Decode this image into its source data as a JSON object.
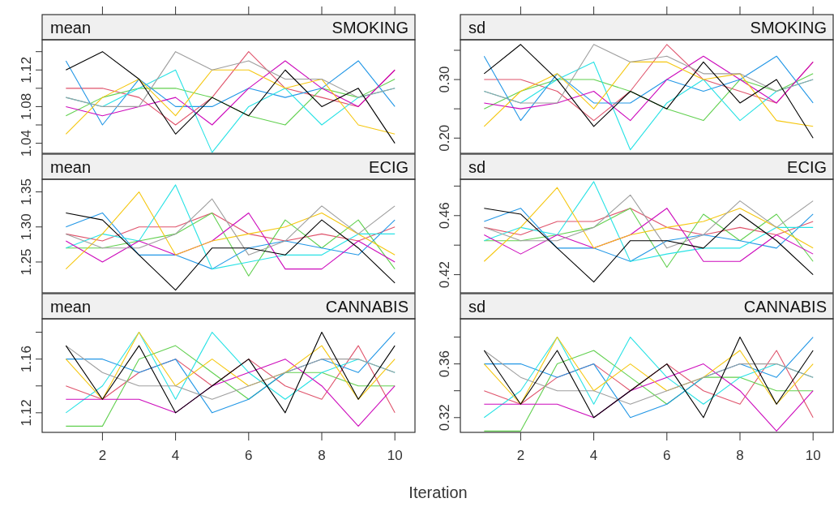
{
  "chart_data": [
    {
      "type": "line",
      "ylabel": "mean",
      "title": "SMOKING",
      "x": [
        1,
        2,
        3,
        4,
        5,
        6,
        7,
        8,
        9,
        10
      ],
      "xlim": [
        0.35,
        10.55
      ],
      "xticks": [
        2,
        4,
        6,
        8,
        10
      ],
      "ylim": [
        1.029,
        1.153
      ],
      "yticks": [
        1.04,
        {
          "value": 1.06,
          "label": null
        },
        1.08,
        {
          "value": 1.1,
          "label": null
        },
        1.12,
        {
          "value": 1.14,
          "label": null
        }
      ],
      "tick_labels": "y",
      "grid": false,
      "series": [
        {
          "color": "#df536b",
          "values": [
            1.1,
            1.1,
            1.09,
            1.06,
            1.09,
            1.14,
            1.1,
            1.09,
            1.08,
            1.12
          ]
        },
        {
          "color": "#61d04f",
          "values": [
            1.07,
            1.09,
            1.1,
            1.1,
            1.09,
            1.07,
            1.06,
            1.1,
            1.09,
            1.11
          ]
        },
        {
          "color": "#2297e6",
          "values": [
            1.13,
            1.06,
            1.11,
            1.08,
            1.08,
            1.1,
            1.09,
            1.1,
            1.13,
            1.08
          ]
        },
        {
          "color": "#28e2e5",
          "values": [
            1.09,
            1.08,
            1.1,
            1.12,
            1.03,
            1.08,
            1.1,
            1.06,
            1.09,
            1.1
          ]
        },
        {
          "color": "#cd0bbc",
          "values": [
            1.08,
            1.07,
            1.08,
            1.09,
            1.06,
            1.1,
            1.13,
            1.1,
            1.08,
            1.12
          ]
        },
        {
          "color": "#f5c710",
          "values": [
            1.05,
            1.09,
            1.11,
            1.07,
            1.12,
            1.12,
            1.1,
            1.11,
            1.06,
            1.05
          ]
        },
        {
          "color": "#9e9e9e",
          "values": [
            1.09,
            1.08,
            1.08,
            1.14,
            1.12,
            1.13,
            1.11,
            1.11,
            1.09,
            1.1
          ]
        },
        {
          "color": "#000000",
          "values": [
            1.12,
            1.14,
            1.11,
            1.05,
            1.09,
            1.07,
            1.12,
            1.08,
            1.1,
            1.04
          ]
        }
      ]
    },
    {
      "type": "line",
      "ylabel": "sd",
      "title": "SMOKING",
      "x": [
        1,
        2,
        3,
        4,
        5,
        6,
        7,
        8,
        9,
        10
      ],
      "xlim": [
        0.35,
        10.55
      ],
      "xticks": [
        2,
        4,
        6,
        8,
        10
      ],
      "ylim": [
        0.174,
        0.368
      ],
      "yticks": [
        {
          "value": 0.2,
          "label": "0.20"
        },
        {
          "value": 0.25,
          "label": null
        },
        {
          "value": 0.3,
          "label": "0.30"
        },
        {
          "value": 0.35,
          "label": null
        }
      ],
      "tick_labels": "y",
      "grid": false,
      "series": [
        {
          "color": "#df536b",
          "values": [
            0.3,
            0.3,
            0.28,
            0.23,
            0.28,
            0.36,
            0.3,
            0.28,
            0.26,
            0.33
          ]
        },
        {
          "color": "#61d04f",
          "values": [
            0.25,
            0.28,
            0.3,
            0.3,
            0.28,
            0.25,
            0.23,
            0.3,
            0.28,
            0.31
          ]
        },
        {
          "color": "#2297e6",
          "values": [
            0.34,
            0.23,
            0.31,
            0.26,
            0.26,
            0.3,
            0.28,
            0.3,
            0.34,
            0.26
          ]
        },
        {
          "color": "#28e2e5",
          "values": [
            0.28,
            0.26,
            0.3,
            0.33,
            0.18,
            0.26,
            0.3,
            0.23,
            0.28,
            0.3
          ]
        },
        {
          "color": "#cd0bbc",
          "values": [
            0.26,
            0.25,
            0.26,
            0.28,
            0.23,
            0.3,
            0.34,
            0.3,
            0.26,
            0.33
          ]
        },
        {
          "color": "#f5c710",
          "values": [
            0.22,
            0.28,
            0.31,
            0.25,
            0.33,
            0.33,
            0.3,
            0.31,
            0.23,
            0.22
          ]
        },
        {
          "color": "#9e9e9e",
          "values": [
            0.28,
            0.26,
            0.26,
            0.36,
            0.33,
            0.34,
            0.31,
            0.31,
            0.28,
            0.3
          ]
        },
        {
          "color": "#000000",
          "values": [
            0.31,
            0.36,
            0.3,
            0.22,
            0.28,
            0.25,
            0.33,
            0.26,
            0.3,
            0.2
          ]
        }
      ]
    },
    {
      "type": "line",
      "ylabel": "mean",
      "title": "ECIG",
      "x": [
        1,
        2,
        3,
        4,
        5,
        6,
        7,
        8,
        9,
        10
      ],
      "xlim": [
        0.35,
        10.55
      ],
      "xticks": [
        2,
        4,
        6,
        8,
        10
      ],
      "ylim": [
        1.206,
        1.368
      ],
      "yticks": [
        1.25,
        {
          "value": 1.3,
          "label": "1.30"
        },
        1.35
      ],
      "tick_labels": "y",
      "grid": false,
      "series": [
        {
          "color": "#df536b",
          "values": [
            1.29,
            1.28,
            1.3,
            1.3,
            1.32,
            1.29,
            1.28,
            1.29,
            1.28,
            1.3
          ]
        },
        {
          "color": "#61d04f",
          "values": [
            1.27,
            1.27,
            1.28,
            1.29,
            1.32,
            1.23,
            1.31,
            1.27,
            1.31,
            1.24
          ]
        },
        {
          "color": "#2297e6",
          "values": [
            1.3,
            1.32,
            1.26,
            1.26,
            1.24,
            1.27,
            1.28,
            1.27,
            1.26,
            1.31
          ]
        },
        {
          "color": "#28e2e5",
          "values": [
            1.27,
            1.29,
            1.28,
            1.36,
            1.24,
            1.25,
            1.26,
            1.26,
            1.29,
            1.29
          ]
        },
        {
          "color": "#cd0bbc",
          "values": [
            1.28,
            1.25,
            1.28,
            1.26,
            1.28,
            1.32,
            1.24,
            1.24,
            1.28,
            1.25
          ]
        },
        {
          "color": "#f5c710",
          "values": [
            1.24,
            1.29,
            1.35,
            1.26,
            1.28,
            1.29,
            1.3,
            1.32,
            1.29,
            1.26
          ]
        },
        {
          "color": "#9e9e9e",
          "values": [
            1.29,
            1.27,
            1.27,
            1.29,
            1.34,
            1.26,
            1.28,
            1.33,
            1.29,
            1.33
          ]
        },
        {
          "color": "#000000",
          "values": [
            1.32,
            1.31,
            1.26,
            1.21,
            1.27,
            1.27,
            1.26,
            1.31,
            1.27,
            1.22
          ]
        }
      ]
    },
    {
      "type": "line",
      "ylabel": "sd",
      "title": "ECIG",
      "x": [
        1,
        2,
        3,
        4,
        5,
        6,
        7,
        8,
        9,
        10
      ],
      "xlim": [
        0.35,
        10.55
      ],
      "xticks": [
        2,
        4,
        6,
        8,
        10
      ],
      "ylim": [
        0.4077,
        0.4846
      ],
      "yticks": [
        0.42,
        {
          "value": 0.44,
          "label": null
        },
        0.46,
        {
          "value": 0.48,
          "label": null
        }
      ],
      "tick_labels": "y",
      "grid": false,
      "series": [
        {
          "color": "#df536b",
          "values": [
            0.452,
            0.447,
            0.456,
            0.456,
            0.465,
            0.452,
            0.447,
            0.452,
            0.447,
            0.456
          ]
        },
        {
          "color": "#61d04f",
          "values": [
            0.443,
            0.443,
            0.447,
            0.452,
            0.465,
            0.425,
            0.461,
            0.443,
            0.461,
            0.429
          ]
        },
        {
          "color": "#2297e6",
          "values": [
            0.456,
            0.465,
            0.438,
            0.438,
            0.429,
            0.443,
            0.447,
            0.443,
            0.438,
            0.461
          ]
        },
        {
          "color": "#28e2e5",
          "values": [
            0.443,
            0.452,
            0.447,
            0.483,
            0.429,
            0.434,
            0.438,
            0.438,
            0.452,
            0.452
          ]
        },
        {
          "color": "#cd0bbc",
          "values": [
            0.447,
            0.434,
            0.447,
            0.438,
            0.447,
            0.465,
            0.429,
            0.429,
            0.447,
            0.434
          ]
        },
        {
          "color": "#f5c710",
          "values": [
            0.429,
            0.452,
            0.479,
            0.438,
            0.447,
            0.452,
            0.456,
            0.465,
            0.452,
            0.438
          ]
        },
        {
          "color": "#9e9e9e",
          "values": [
            0.452,
            0.443,
            0.443,
            0.452,
            0.474,
            0.438,
            0.447,
            0.47,
            0.452,
            0.47
          ]
        },
        {
          "color": "#000000",
          "values": [
            0.465,
            0.461,
            0.438,
            0.415,
            0.443,
            0.443,
            0.438,
            0.461,
            0.443,
            0.42
          ]
        }
      ]
    },
    {
      "type": "line",
      "ylabel": "mean",
      "title": "CANNABIS",
      "xlabel": "Iteration",
      "x": [
        1,
        2,
        3,
        4,
        5,
        6,
        7,
        8,
        9,
        10
      ],
      "xlim": [
        0.35,
        10.55
      ],
      "xticks": [
        2,
        4,
        6,
        8,
        10
      ],
      "ylim": [
        1.1054,
        1.19
      ],
      "yticks": [
        1.12,
        {
          "value": 1.14,
          "label": null
        },
        1.16,
        {
          "value": 1.18,
          "label": null
        }
      ],
      "grid": false,
      "series": [
        {
          "color": "#df536b",
          "values": [
            1.14,
            1.13,
            1.15,
            1.16,
            1.14,
            1.16,
            1.14,
            1.13,
            1.17,
            1.12
          ]
        },
        {
          "color": "#61d04f",
          "values": [
            1.11,
            1.11,
            1.16,
            1.17,
            1.15,
            1.13,
            1.15,
            1.15,
            1.14,
            1.14
          ]
        },
        {
          "color": "#2297e6",
          "values": [
            1.16,
            1.16,
            1.15,
            1.16,
            1.12,
            1.13,
            1.15,
            1.16,
            1.15,
            1.18
          ]
        },
        {
          "color": "#28e2e5",
          "values": [
            1.12,
            1.14,
            1.18,
            1.13,
            1.18,
            1.15,
            1.13,
            1.15,
            1.16,
            1.15
          ]
        },
        {
          "color": "#cd0bbc",
          "values": [
            1.13,
            1.13,
            1.13,
            1.12,
            1.14,
            1.15,
            1.16,
            1.14,
            1.11,
            1.14
          ]
        },
        {
          "color": "#f5c710",
          "values": [
            1.16,
            1.13,
            1.18,
            1.14,
            1.16,
            1.14,
            1.15,
            1.17,
            1.13,
            1.16
          ]
        },
        {
          "color": "#9e9e9e",
          "values": [
            1.17,
            1.15,
            1.14,
            1.14,
            1.13,
            1.14,
            1.15,
            1.16,
            1.16,
            1.15
          ]
        },
        {
          "color": "#000000",
          "values": [
            1.17,
            1.13,
            1.17,
            1.12,
            1.14,
            1.16,
            1.12,
            1.18,
            1.13,
            1.17
          ]
        }
      ]
    },
    {
      "type": "line",
      "ylabel": "sd",
      "title": "CANNABIS",
      "x": [
        1,
        2,
        3,
        4,
        5,
        6,
        7,
        8,
        9,
        10
      ],
      "xlim": [
        0.35,
        10.55
      ],
      "xticks": [
        2,
        4,
        6,
        8,
        10
      ],
      "ylim": [
        0.309,
        0.3936
      ],
      "yticks": [
        0.32,
        {
          "value": 0.34,
          "label": null
        },
        0.36,
        {
          "value": 0.38,
          "label": null
        }
      ],
      "grid": false,
      "series": [
        {
          "color": "#df536b",
          "values": [
            0.34,
            0.33,
            0.35,
            0.36,
            0.34,
            0.36,
            0.34,
            0.33,
            0.37,
            0.32
          ]
        },
        {
          "color": "#61d04f",
          "values": [
            0.31,
            0.31,
            0.36,
            0.37,
            0.35,
            0.33,
            0.35,
            0.35,
            0.34,
            0.34
          ]
        },
        {
          "color": "#2297e6",
          "values": [
            0.36,
            0.36,
            0.35,
            0.36,
            0.32,
            0.33,
            0.35,
            0.36,
            0.35,
            0.38
          ]
        },
        {
          "color": "#28e2e5",
          "values": [
            0.32,
            0.34,
            0.38,
            0.33,
            0.38,
            0.35,
            0.33,
            0.35,
            0.36,
            0.35
          ]
        },
        {
          "color": "#cd0bbc",
          "values": [
            0.33,
            0.33,
            0.33,
            0.32,
            0.34,
            0.35,
            0.36,
            0.34,
            0.31,
            0.34
          ]
        },
        {
          "color": "#f5c710",
          "values": [
            0.36,
            0.33,
            0.38,
            0.34,
            0.36,
            0.34,
            0.35,
            0.37,
            0.33,
            0.36
          ]
        },
        {
          "color": "#9e9e9e",
          "values": [
            0.37,
            0.35,
            0.34,
            0.34,
            0.33,
            0.34,
            0.35,
            0.36,
            0.36,
            0.35
          ]
        },
        {
          "color": "#000000",
          "values": [
            0.37,
            0.33,
            0.37,
            0.32,
            0.34,
            0.36,
            0.32,
            0.38,
            0.33,
            0.37
          ]
        }
      ]
    }
  ]
}
